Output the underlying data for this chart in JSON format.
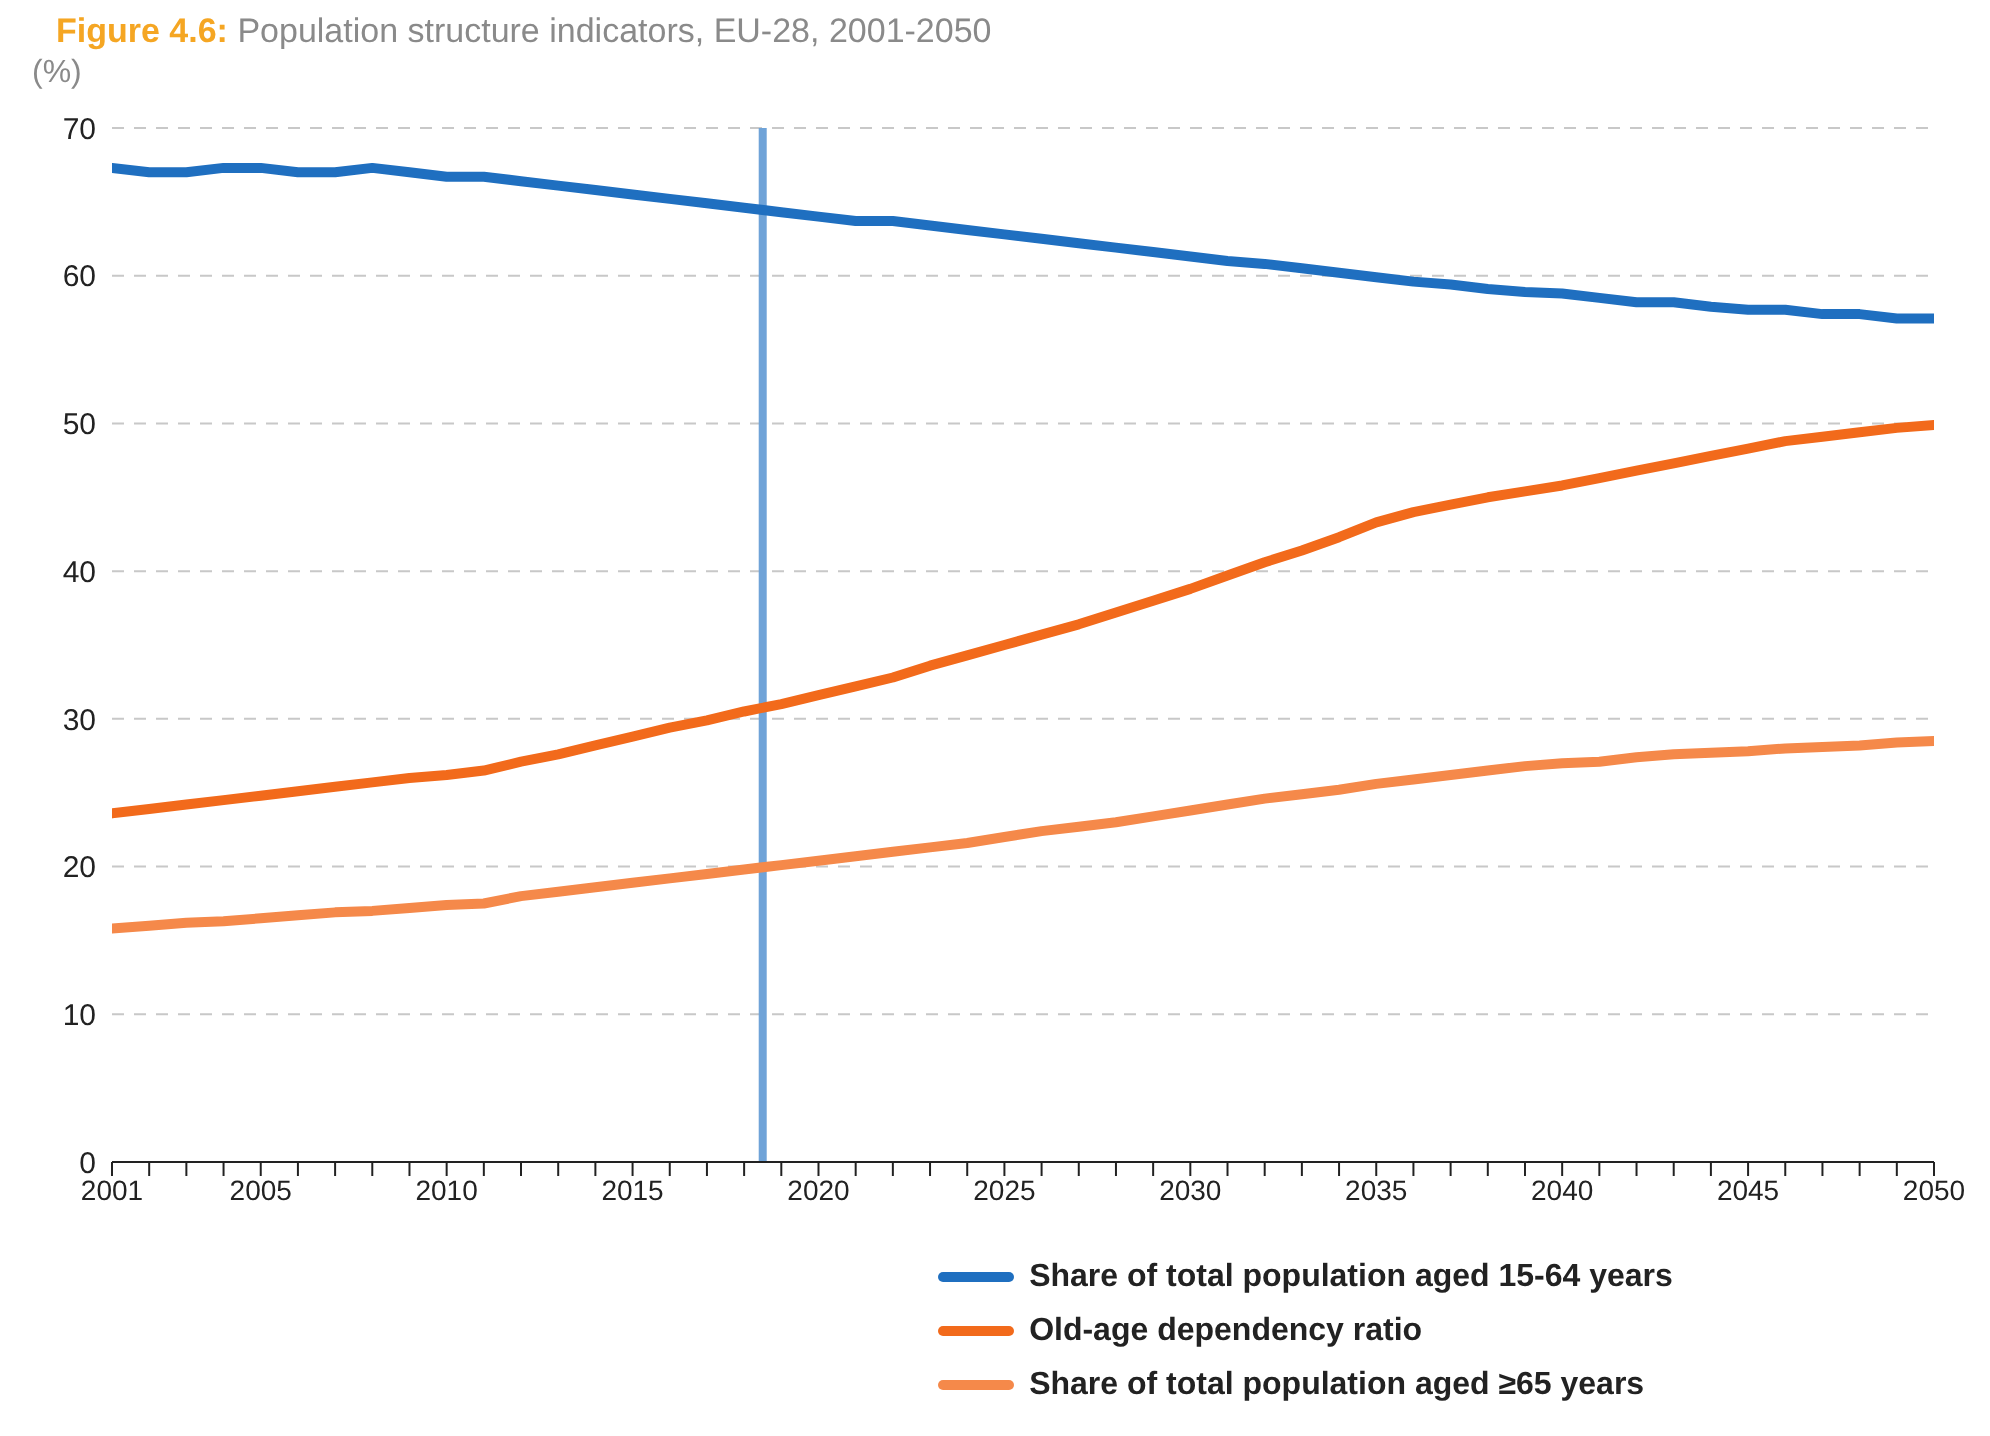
{
  "chart_data": {
    "type": "line",
    "title": "Figure 4.6: Population structure indicators, EU-28, 2001-2050",
    "ylabel": "(%)",
    "x": [
      2001,
      2002,
      2003,
      2004,
      2005,
      2006,
      2007,
      2008,
      2009,
      2010,
      2011,
      2012,
      2013,
      2014,
      2015,
      2016,
      2017,
      2018,
      2019,
      2020,
      2021,
      2022,
      2023,
      2024,
      2025,
      2026,
      2027,
      2028,
      2029,
      2030,
      2031,
      2032,
      2033,
      2034,
      2035,
      2036,
      2037,
      2038,
      2039,
      2040,
      2041,
      2042,
      2043,
      2044,
      2045,
      2046,
      2047,
      2048,
      2049,
      2050
    ],
    "series": [
      {
        "name": "Share of total population aged 15-64 years",
        "color": "#1f6fc0",
        "values": [
          67.3,
          67.0,
          67.0,
          67.3,
          67.3,
          67.0,
          67.0,
          67.3,
          67.0,
          66.7,
          66.7,
          66.4,
          66.1,
          65.8,
          65.5,
          65.2,
          64.9,
          64.6,
          64.3,
          64.0,
          63.7,
          63.7,
          63.4,
          63.1,
          62.8,
          62.5,
          62.2,
          61.9,
          61.6,
          61.3,
          61.0,
          60.8,
          60.5,
          60.2,
          59.9,
          59.6,
          59.4,
          59.1,
          58.9,
          58.8,
          58.5,
          58.2,
          58.2,
          57.9,
          57.7,
          57.7,
          57.4,
          57.4,
          57.1,
          57.1
        ]
      },
      {
        "name": "Old-age dependency ratio",
        "color": "#f26a1b",
        "values": [
          23.6,
          23.9,
          24.2,
          24.5,
          24.8,
          25.1,
          25.4,
          25.7,
          26.0,
          26.2,
          26.5,
          27.1,
          27.6,
          28.2,
          28.8,
          29.4,
          29.9,
          30.5,
          31.0,
          31.6,
          32.2,
          32.8,
          33.6,
          34.3,
          35.0,
          35.7,
          36.4,
          37.2,
          38.0,
          38.8,
          39.7,
          40.6,
          41.4,
          42.3,
          43.3,
          44.0,
          44.5,
          45.0,
          45.4,
          45.8,
          46.3,
          46.8,
          47.3,
          47.8,
          48.3,
          48.8,
          49.1,
          49.4,
          49.7,
          49.9
        ]
      },
      {
        "name": "Share of total population aged ≥65 years",
        "color": "#f5894a",
        "values": [
          15.8,
          16.0,
          16.2,
          16.3,
          16.5,
          16.7,
          16.9,
          17.0,
          17.2,
          17.4,
          17.5,
          18.0,
          18.3,
          18.6,
          18.9,
          19.2,
          19.5,
          19.8,
          20.1,
          20.4,
          20.7,
          21.0,
          21.3,
          21.6,
          22.0,
          22.4,
          22.7,
          23.0,
          23.4,
          23.8,
          24.2,
          24.6,
          24.9,
          25.2,
          25.6,
          25.9,
          26.2,
          26.5,
          26.8,
          27.0,
          27.1,
          27.4,
          27.6,
          27.7,
          27.8,
          28.0,
          28.1,
          28.2,
          28.4,
          28.5
        ]
      }
    ],
    "ylim": [
      0,
      70
    ],
    "yticks": [
      0,
      10,
      20,
      30,
      40,
      50,
      60,
      70
    ],
    "xlim": [
      2001,
      2050
    ],
    "xticks": [
      2001,
      {
        "value": 2002,
        "label": null
      },
      {
        "value": 2003,
        "label": null
      },
      {
        "value": 2004,
        "label": null
      },
      2005,
      {
        "value": 2006,
        "label": null
      },
      {
        "value": 2007,
        "label": null
      },
      {
        "value": 2008,
        "label": null
      },
      {
        "value": 2009,
        "label": null
      },
      2010,
      {
        "value": 2011,
        "label": null
      },
      {
        "value": 2012,
        "label": null
      },
      {
        "value": 2013,
        "label": null
      },
      {
        "value": 2014,
        "label": null
      },
      2015,
      {
        "value": 2016,
        "label": null
      },
      {
        "value": 2017,
        "label": null
      },
      {
        "value": 2018,
        "label": null
      },
      {
        "value": 2019,
        "label": null
      },
      2020,
      {
        "value": 2021,
        "label": null
      },
      {
        "value": 2022,
        "label": null
      },
      {
        "value": 2023,
        "label": null
      },
      {
        "value": 2024,
        "label": null
      },
      2025,
      {
        "value": 2026,
        "label": null
      },
      {
        "value": 2027,
        "label": null
      },
      {
        "value": 2028,
        "label": null
      },
      {
        "value": 2029,
        "label": null
      },
      2030,
      {
        "value": 2031,
        "label": null
      },
      {
        "value": 2032,
        "label": null
      },
      {
        "value": 2033,
        "label": null
      },
      {
        "value": 2034,
        "label": null
      },
      2035,
      {
        "value": 2036,
        "label": null
      },
      {
        "value": 2037,
        "label": null
      },
      {
        "value": 2038,
        "label": null
      },
      {
        "value": 2039,
        "label": null
      },
      2040,
      {
        "value": 2041,
        "label": null
      },
      {
        "value": 2042,
        "label": null
      },
      {
        "value": 2043,
        "label": null
      },
      {
        "value": 2044,
        "label": null
      },
      2045,
      {
        "value": 2046,
        "label": null
      },
      {
        "value": 2047,
        "label": null
      },
      {
        "value": 2048,
        "label": null
      },
      {
        "value": 2049,
        "label": null
      },
      2050
    ],
    "ref_lines": [
      {
        "axis": "x",
        "value": 2018.5,
        "color": "#6fa3d8"
      }
    ],
    "grid": "y",
    "legend": "bottom",
    "marker": "none",
    "line_style": "solid"
  }
}
